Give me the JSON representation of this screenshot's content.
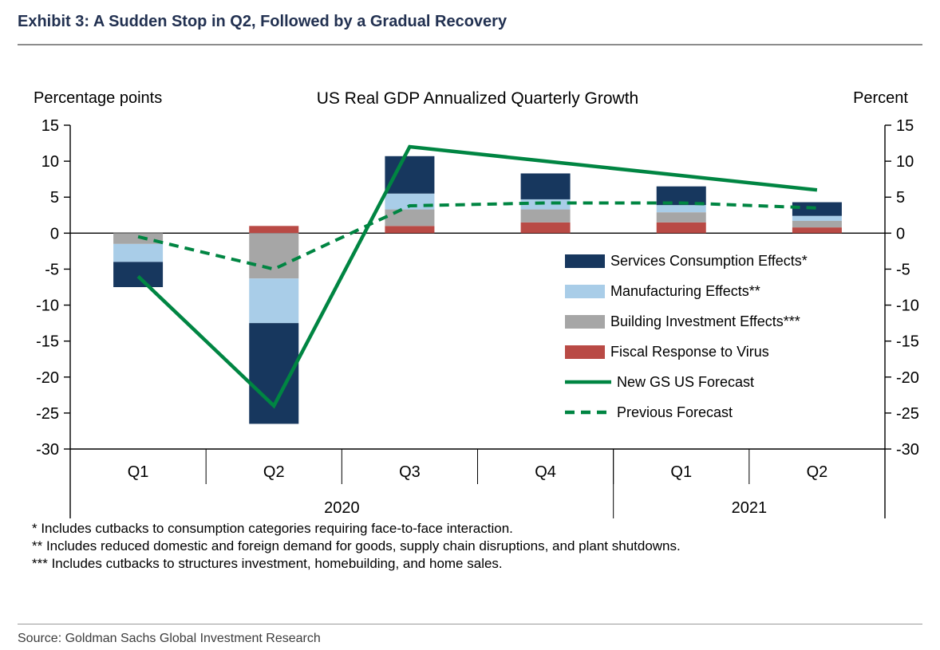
{
  "header": {
    "title": "Exhibit 3: A Sudden Stop in Q2, Followed by a Gradual Recovery"
  },
  "chart": {
    "title": "US Real GDP Annualized Quarterly Growth",
    "left_unit": "Percentage points",
    "right_unit": "Percent"
  },
  "chart_data": {
    "type": "bar",
    "subtype": "stacked-bars-with-lines",
    "categories": [
      "Q1",
      "Q2",
      "Q3",
      "Q4",
      "Q1",
      "Q2"
    ],
    "year_groups": [
      {
        "label": "2020",
        "span": 4
      },
      {
        "label": "2021",
        "span": 2
      }
    ],
    "ylim": [
      -30,
      15
    ],
    "ytick_step": 5,
    "bar_series": [
      {
        "name": "Fiscal Response to Virus",
        "color": "#B94A45",
        "values": [
          0,
          1,
          1,
          1.5,
          1.5,
          0.8
        ]
      },
      {
        "name": "Building Investment Effects***",
        "color": "#A6A6A6",
        "values": [
          -1.5,
          -6.3,
          2.3,
          1.8,
          1.4,
          0.9
        ]
      },
      {
        "name": "Manufacturing Effects**",
        "color": "#A9CDE8",
        "values": [
          -2.5,
          -6.2,
          2.2,
          1.4,
          1,
          0.7
        ]
      },
      {
        "name": "Services Consumption Effects*",
        "color": "#17375E",
        "values": [
          -3.5,
          -14,
          5.2,
          3.6,
          2.6,
          1.9
        ]
      }
    ],
    "line_series": [
      {
        "name": "Previous Forecast",
        "color": "#008542",
        "style": "dashed",
        "values": [
          -0.5,
          -5,
          3.8,
          4.2,
          4.2,
          3.5
        ]
      },
      {
        "name": "New GS US Forecast",
        "color": "#008542",
        "style": "solid",
        "values": [
          -6,
          -24,
          12,
          10,
          8,
          6
        ]
      }
    ],
    "legend_position": "inside-right"
  },
  "legend": [
    {
      "label": "Services Consumption Effects*",
      "type": "box",
      "color": "#17375E"
    },
    {
      "label": "Manufacturing Effects**",
      "type": "box",
      "color": "#A9CDE8"
    },
    {
      "label": "Building Investment Effects***",
      "type": "box",
      "color": "#A6A6A6"
    },
    {
      "label": "Fiscal Response to Virus",
      "type": "box",
      "color": "#B94A45"
    },
    {
      "label": "New GS US Forecast",
      "type": "line-solid",
      "color": "#008542"
    },
    {
      "label": "Previous Forecast",
      "type": "line-dashed",
      "color": "#008542"
    }
  ],
  "footnotes": [
    "* Includes cutbacks to consumption categories requiring face-to-face interaction.",
    "** Includes reduced domestic and foreign demand for goods, supply chain disruptions, and plant shutdowns.",
    "*** Includes cutbacks to structures investment, homebuilding, and home sales."
  ],
  "footer": {
    "source": "Source: Goldman Sachs Global Investment Research"
  }
}
